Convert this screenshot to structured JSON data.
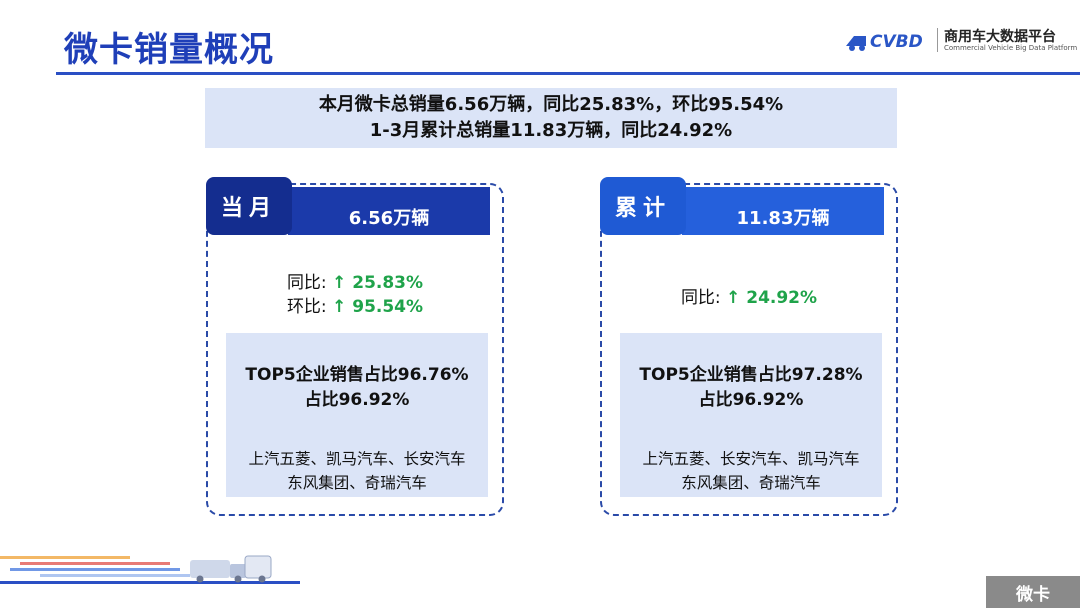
{
  "header": {
    "title": "微卡销量概况",
    "logo_text": "商用车大数据平台",
    "logo_sub": "Commercial Vehicle Big Data Platform",
    "logo_mark": "CVBD"
  },
  "summary": {
    "line1": "本月微卡总销量6.56万辆，同比25.83%，环比95.54%",
    "line2": "1-3月累计总销量11.83万辆，同比24.92%"
  },
  "monthly": {
    "tag": "当月",
    "volume": "6.56万辆",
    "yoy_label": "同比:",
    "yoy_value": "↑ 25.83%",
    "mom_label": "环比:",
    "mom_value": "↑ 95.54%",
    "top5_line1": "TOP5企业销售占比96.76%",
    "top5_line2": "占比96.92%",
    "companies_line1": "上汽五菱、凯马汽车、长安汽车",
    "companies_line2": "东风集团、奇瑞汽车"
  },
  "cumulative": {
    "tag": "累计",
    "volume": "11.83万辆",
    "yoy_label": "同比:",
    "yoy_value": "↑ 24.92%",
    "top5_line1": "TOP5企业销售占比97.28%",
    "top5_line2": "占比96.92%",
    "companies_line1": "上汽五菱、长安汽车、凯马汽车",
    "companies_line2": "东风集团、奇瑞汽车"
  },
  "footer": {
    "section_tag": "微卡"
  },
  "colors": {
    "brand_blue": "#1f3fb8",
    "dark_band": "#1b3aaa",
    "light_band": "#2560dc",
    "panel_bg": "#dbe4f7",
    "growth_green": "#1fa34a",
    "section_gray": "#8a8a8a"
  },
  "icons": {
    "logo": "truck-logo-icon",
    "footer_art": "trucks-illustration-icon"
  }
}
